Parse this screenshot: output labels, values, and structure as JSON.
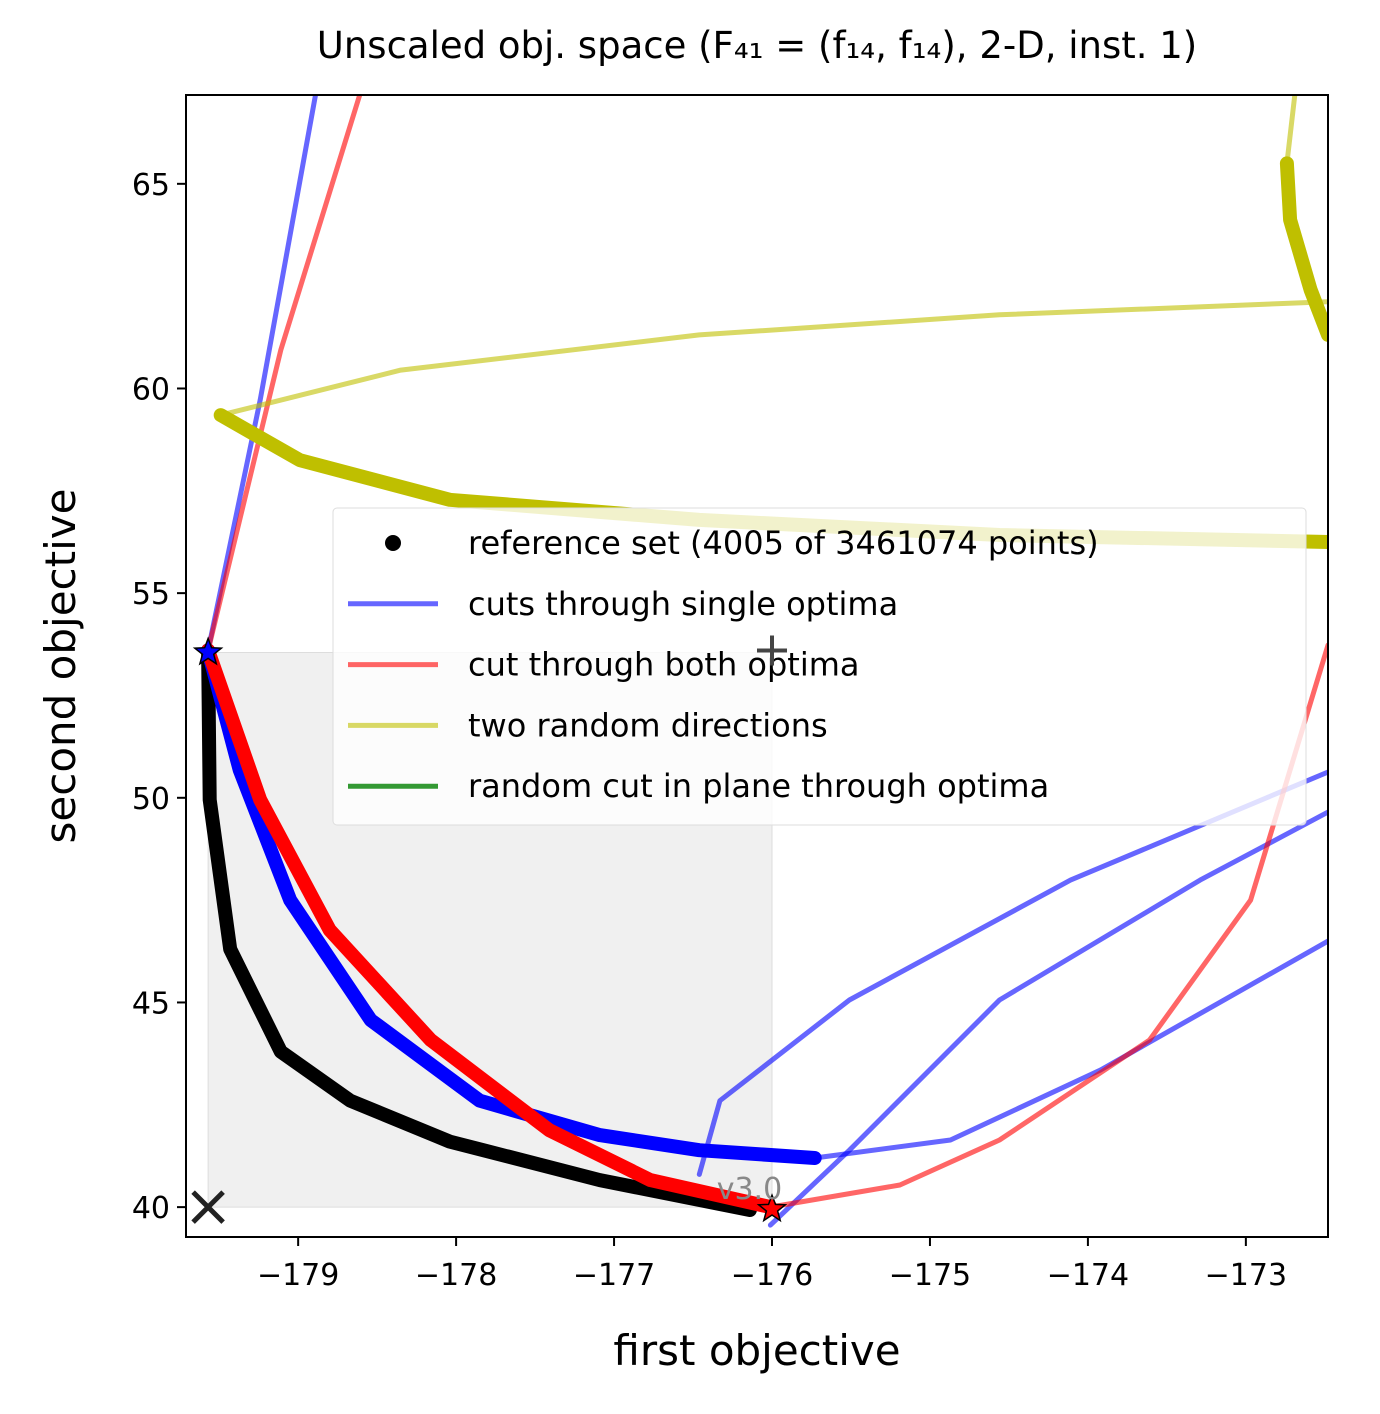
{
  "chart_data": {
    "type": "line",
    "title": "Unscaled obj. space (F₄₁ = (f₁₄, f₁₄), 2-D, inst. 1)",
    "x_label": "first objective",
    "y_label": "second objective",
    "xlim": [
      -179.71,
      -172.48
    ],
    "ylim": [
      39.27,
      67.17
    ],
    "xticks": [
      {
        "value": -179,
        "label": "−179"
      },
      {
        "value": -178,
        "label": "−178"
      },
      {
        "value": -177,
        "label": "−177"
      },
      {
        "value": -176,
        "label": "−176"
      },
      {
        "value": -175,
        "label": "−175"
      },
      {
        "value": -174,
        "label": "−174"
      },
      {
        "value": -173,
        "label": "−173"
      }
    ],
    "yticks": [
      40,
      45,
      50,
      55,
      60,
      65
    ],
    "region": {
      "x": [
        -179.57,
        -176.0
      ],
      "y": [
        40,
        53.55
      ],
      "color": "#f0f0f0"
    },
    "series": [
      {
        "name": "reference set (4005 of 3461074 points)",
        "color": "#000000",
        "style": "thick",
        "marker": "dot",
        "x": [
          -179.57,
          -179.56,
          -179.43,
          -179.11,
          -178.67,
          -178.04,
          -177.09,
          -176.14
        ],
        "y": [
          53.6,
          49.95,
          46.3,
          43.8,
          42.6,
          41.6,
          40.66,
          39.93
        ]
      },
      {
        "name": "cuts through single optima",
        "color": "#0000ff",
        "style": "thick",
        "x": [
          -179.57,
          -179.37,
          -179.05,
          -178.54,
          -177.85,
          -177.09,
          -176.46,
          -175.73
        ],
        "y": [
          53.6,
          50.68,
          47.5,
          44.57,
          42.6,
          41.76,
          41.39,
          41.2
        ]
      },
      {
        "color": "#0000ff",
        "style": "thin",
        "x": [
          -175.73,
          -174.87,
          -173.92,
          -172.48
        ],
        "y": [
          41.2,
          41.64,
          43.35,
          46.5
        ]
      },
      {
        "color": "#0000ff",
        "style": "thin",
        "x": [
          -176.46,
          -176.33,
          -175.51,
          -174.11,
          -172.48
        ],
        "y": [
          40.8,
          42.6,
          45.06,
          47.99,
          50.63
        ]
      },
      {
        "color": "#0000ff",
        "style": "thin",
        "x": [
          -176.01,
          -175.51,
          -174.56,
          -173.29,
          -172.48
        ],
        "y": [
          39.56,
          41.39,
          45.06,
          47.99,
          49.65
        ]
      },
      {
        "color": "#0000ff",
        "style": "thin",
        "x": [
          -179.57,
          -179.24,
          -178.89
        ],
        "y": [
          53.6,
          59.72,
          67.17
        ]
      },
      {
        "name": "cut through both optima",
        "color": "#ff0000",
        "style": "thick",
        "x": [
          -179.57,
          -179.24,
          -178.8,
          -178.16,
          -177.41,
          -176.77,
          -176.01
        ],
        "y": [
          53.6,
          49.95,
          46.77,
          44.08,
          41.88,
          40.66,
          40.0
        ]
      },
      {
        "color": "#ff0000",
        "style": "thin",
        "x": [
          -176.01,
          -175.19,
          -174.56,
          -173.61,
          -172.97,
          -172.48
        ],
        "y": [
          40.0,
          40.54,
          41.64,
          44.08,
          47.5,
          53.73
        ]
      },
      {
        "color": "#ff0000",
        "style": "thin",
        "x": [
          -179.57,
          -179.11,
          -178.61
        ],
        "y": [
          53.6,
          60.94,
          67.17
        ]
      },
      {
        "name": "two random directions",
        "color": "#bfbf00",
        "style": "thick",
        "x": [
          -179.49,
          -178.99,
          -178.04,
          -176.46,
          -174.56,
          -172.48
        ],
        "y": [
          59.35,
          58.25,
          57.28,
          56.79,
          56.42,
          56.25
        ]
      },
      {
        "color": "#bfbf00",
        "style": "thick",
        "x": [
          -172.74,
          -172.72,
          -172.59,
          -172.48
        ],
        "y": [
          65.5,
          64.12,
          62.41,
          61.31
        ]
      },
      {
        "color": "#bfbf00",
        "style": "thin",
        "x": [
          -179.49,
          -178.35,
          -176.46,
          -174.56,
          -172.48
        ],
        "y": [
          59.35,
          60.45,
          61.31,
          61.8,
          62.12
        ]
      },
      {
        "color": "#bfbf00",
        "style": "thin",
        "x": [
          -172.69,
          -172.74
        ],
        "y": [
          67.17,
          65.5
        ]
      },
      {
        "name": "random cut in plane through optima",
        "color": "#008000",
        "style": "thin",
        "x": [],
        "y": []
      }
    ],
    "markers": [
      {
        "x": -179.57,
        "y": 53.55,
        "symbol": "star",
        "color": "#0000ff"
      },
      {
        "x": -176.0,
        "y": 39.95,
        "symbol": "star",
        "color": "#ff0000"
      },
      {
        "x": -179.57,
        "y": 40.0,
        "symbol": "x",
        "color": "#222222"
      },
      {
        "x": -176.0,
        "y": 53.6,
        "symbol": "plus",
        "color": "#444444"
      }
    ],
    "annotation": {
      "text": "v3.0",
      "x": -176.35,
      "y": 40.2
    }
  }
}
